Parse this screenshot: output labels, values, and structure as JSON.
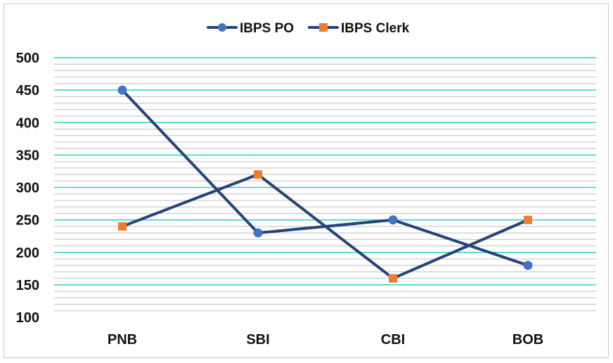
{
  "chart_data": {
    "type": "line",
    "categories": [
      "PNB",
      "SBI",
      "CBI",
      "BOB"
    ],
    "series": [
      {
        "name": "IBPS PO",
        "values": [
          450,
          230,
          250,
          180
        ],
        "marker": "circle",
        "marker_color": "#4472C4"
      },
      {
        "name": "IBPS Clerk",
        "values": [
          240,
          320,
          160,
          250
        ],
        "marker": "square",
        "marker_color": "#ED7D31"
      }
    ],
    "line_color": "#264478",
    "major_gridline_color": "#33CCCC",
    "minor_gridline_color": "#BFBFBF",
    "ylim": [
      100,
      500
    ],
    "y_major_step": 50,
    "y_minor_step": 10,
    "yticks": [
      "100",
      "150",
      "200",
      "250",
      "300",
      "350",
      "400",
      "450",
      "500"
    ],
    "legend_position": "top",
    "grid": true
  }
}
